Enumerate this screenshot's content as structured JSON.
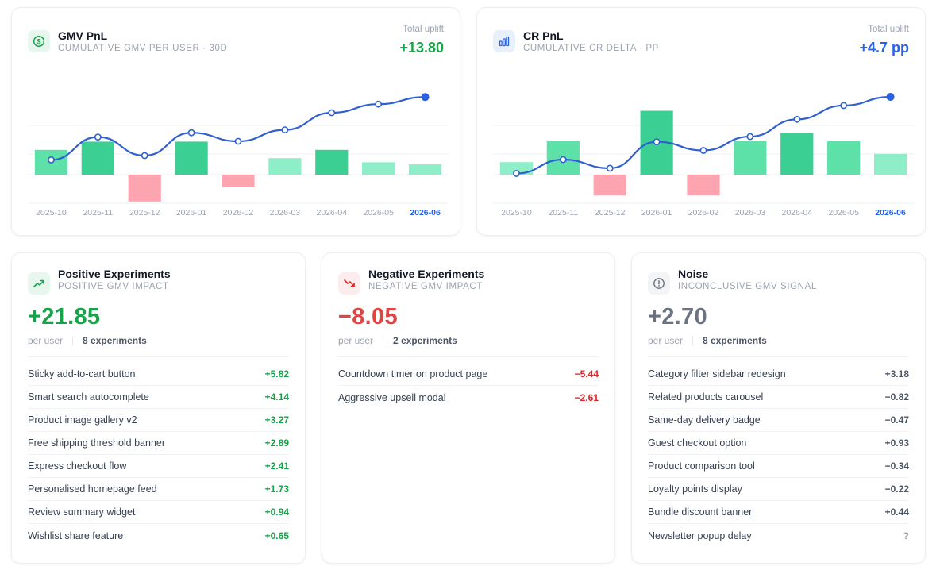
{
  "colors": {
    "green": "#16a34a",
    "red": "#dc2626",
    "gray": "#6b7280",
    "blue": "#2563eb",
    "bar_green": "#5ee0a9",
    "bar_red": "#fca5b0"
  },
  "gmv_card": {
    "icon": "dollar-icon",
    "title": "GMV PnL",
    "subtitle": "CUMULATIVE GMV PER USER · 30D",
    "uplift_label": "Total uplift",
    "uplift_value": "+13.80"
  },
  "cr_card": {
    "icon": "bar-chart-icon",
    "title": "CR PnL",
    "subtitle": "CUMULATIVE CR DELTA · PP",
    "uplift_label": "Total uplift",
    "uplift_value": "+4.7 pp"
  },
  "chart_data": [
    {
      "type": "bar",
      "categories": [
        "2025-10",
        "2025-11",
        "2025-12",
        "2026-01",
        "2026-02",
        "2026-03",
        "2026-04",
        "2026-05",
        "2026-06"
      ],
      "active_category": "2026-06",
      "bars": [
        1.2,
        1.6,
        -1.3,
        1.6,
        -0.6,
        0.8,
        1.2,
        0.6,
        0.5
      ],
      "cumulative_line": [
        1.2,
        2.8,
        1.5,
        3.1,
        2.5,
        3.3,
        4.5,
        5.1,
        5.6
      ],
      "grid": true
    },
    {
      "type": "bar",
      "categories": [
        "2025-10",
        "2025-11",
        "2025-12",
        "2026-01",
        "2026-02",
        "2026-03",
        "2026-04",
        "2026-05",
        "2026-06"
      ],
      "active_category": "2026-06",
      "bars": [
        0.45,
        1.2,
        -0.75,
        2.3,
        -0.75,
        1.2,
        1.5,
        1.2,
        0.75
      ],
      "cumulative_line": [
        0.45,
        1.65,
        0.9,
        3.2,
        2.45,
        3.65,
        5.15,
        6.35,
        7.1
      ],
      "grid": true
    }
  ],
  "positive": {
    "icon": "trend-up-icon",
    "title": "Positive Experiments",
    "subtitle": "POSITIVE GMV IMPACT",
    "total": "+21.85",
    "per_user": "per user",
    "count": "8 experiments",
    "items": [
      {
        "name": "Sticky add-to-cart button",
        "value": "+5.82"
      },
      {
        "name": "Smart search autocomplete",
        "value": "+4.14"
      },
      {
        "name": "Product image gallery v2",
        "value": "+3.27"
      },
      {
        "name": "Free shipping threshold banner",
        "value": "+2.89"
      },
      {
        "name": "Express checkout flow",
        "value": "+2.41"
      },
      {
        "name": "Personalised homepage feed",
        "value": "+1.73"
      },
      {
        "name": "Review summary widget",
        "value": "+0.94"
      },
      {
        "name": "Wishlist share feature",
        "value": "+0.65"
      }
    ]
  },
  "negative": {
    "icon": "trend-down-icon",
    "title": "Negative Experiments",
    "subtitle": "NEGATIVE GMV IMPACT",
    "total": "−8.05",
    "per_user": "per user",
    "count": "2 experiments",
    "items": [
      {
        "name": "Countdown timer on product page",
        "value": "−5.44"
      },
      {
        "name": "Aggressive upsell modal",
        "value": "−2.61"
      }
    ]
  },
  "noise": {
    "icon": "alert-circle-icon",
    "title": "Noise",
    "subtitle": "INCONCLUSIVE GMV SIGNAL",
    "total": "+2.70",
    "per_user": "per user",
    "count": "8 experiments",
    "items": [
      {
        "name": "Category filter sidebar redesign",
        "value": "+3.18"
      },
      {
        "name": "Related products carousel",
        "value": "−0.82"
      },
      {
        "name": "Same-day delivery badge",
        "value": "−0.47"
      },
      {
        "name": "Guest checkout option",
        "value": "+0.93"
      },
      {
        "name": "Product comparison tool",
        "value": "−0.34"
      },
      {
        "name": "Loyalty points display",
        "value": "−0.22"
      },
      {
        "name": "Bundle discount banner",
        "value": "+0.44"
      },
      {
        "name": "Newsletter popup delay",
        "value": "?"
      }
    ]
  }
}
